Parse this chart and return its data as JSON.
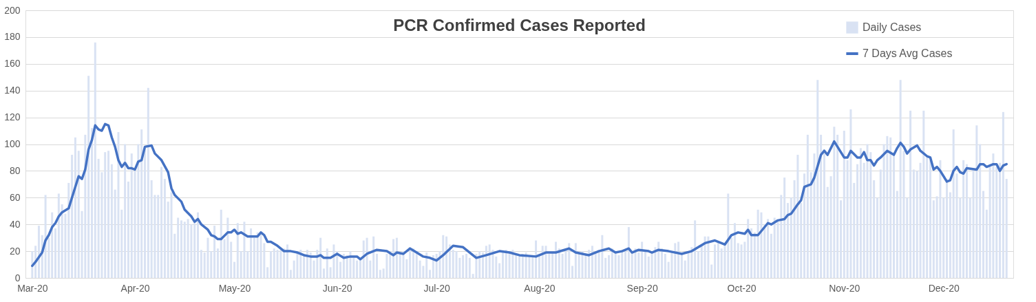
{
  "chart_data": {
    "type": "bar",
    "title": "PCR Confirmed Cases Reported",
    "x": [
      "2020-03-01",
      "2020-03-02",
      "2020-03-03",
      "2020-03-04",
      "2020-03-05",
      "2020-03-06",
      "2020-03-07",
      "2020-03-08",
      "2020-03-09",
      "2020-03-10",
      "2020-03-11",
      "2020-03-12",
      "2020-03-13",
      "2020-03-14",
      "2020-03-15",
      "2020-03-16",
      "2020-03-17",
      "2020-03-18",
      "2020-03-19",
      "2020-03-20",
      "2020-03-21",
      "2020-03-22",
      "2020-03-23",
      "2020-03-24",
      "2020-03-25",
      "2020-03-26",
      "2020-03-27",
      "2020-03-28",
      "2020-03-29",
      "2020-03-30",
      "2020-03-31",
      "2020-04-01",
      "2020-04-02",
      "2020-04-03",
      "2020-04-04",
      "2020-04-05",
      "2020-04-06",
      "2020-04-07",
      "2020-04-08",
      "2020-04-09",
      "2020-04-10",
      "2020-04-11",
      "2020-04-12",
      "2020-04-13",
      "2020-04-14",
      "2020-04-15",
      "2020-04-16",
      "2020-04-17",
      "2020-04-18",
      "2020-04-19",
      "2020-04-20",
      "2020-04-21",
      "2020-04-22",
      "2020-04-23",
      "2020-04-24",
      "2020-04-25",
      "2020-04-26",
      "2020-04-27",
      "2020-04-28",
      "2020-04-29",
      "2020-04-30",
      "2020-05-01",
      "2020-05-02",
      "2020-05-03",
      "2020-05-04",
      "2020-05-05",
      "2020-05-06",
      "2020-05-07",
      "2020-05-08",
      "2020-05-09",
      "2020-05-10",
      "2020-05-11",
      "2020-05-12",
      "2020-05-13",
      "2020-05-14",
      "2020-05-15",
      "2020-05-16",
      "2020-05-17",
      "2020-05-18",
      "2020-05-19",
      "2020-05-20",
      "2020-05-21",
      "2020-05-22",
      "2020-05-23",
      "2020-05-24",
      "2020-05-25",
      "2020-05-26",
      "2020-05-27",
      "2020-05-28",
      "2020-05-29",
      "2020-05-30",
      "2020-05-31",
      "2020-06-01",
      "2020-06-02",
      "2020-06-03",
      "2020-06-04",
      "2020-06-05",
      "2020-06-06",
      "2020-06-07",
      "2020-06-08",
      "2020-06-09",
      "2020-06-10",
      "2020-06-11",
      "2020-06-12",
      "2020-06-13",
      "2020-06-14",
      "2020-06-15",
      "2020-06-16",
      "2020-06-17",
      "2020-06-18",
      "2020-06-19",
      "2020-06-20",
      "2020-06-21",
      "2020-06-22",
      "2020-06-23",
      "2020-06-24",
      "2020-06-25",
      "2020-06-26",
      "2020-06-27",
      "2020-06-28",
      "2020-06-29",
      "2020-06-30",
      "2020-07-01",
      "2020-07-02",
      "2020-07-03",
      "2020-07-04",
      "2020-07-05",
      "2020-07-06",
      "2020-07-07",
      "2020-07-08",
      "2020-07-09",
      "2020-07-10",
      "2020-07-11",
      "2020-07-12",
      "2020-07-13",
      "2020-07-14",
      "2020-07-15",
      "2020-07-16",
      "2020-07-17",
      "2020-07-18",
      "2020-07-19",
      "2020-07-20",
      "2020-07-21",
      "2020-07-22",
      "2020-07-23",
      "2020-07-24",
      "2020-07-25",
      "2020-07-26",
      "2020-07-27",
      "2020-07-28",
      "2020-07-29",
      "2020-07-30",
      "2020-07-31",
      "2020-08-01",
      "2020-08-02",
      "2020-08-03",
      "2020-08-04",
      "2020-08-05",
      "2020-08-06",
      "2020-08-07",
      "2020-08-08",
      "2020-08-09",
      "2020-08-10",
      "2020-08-11",
      "2020-08-12",
      "2020-08-13",
      "2020-08-14",
      "2020-08-15",
      "2020-08-16",
      "2020-08-17",
      "2020-08-18",
      "2020-08-19",
      "2020-08-20",
      "2020-08-21",
      "2020-08-22",
      "2020-08-23",
      "2020-08-24",
      "2020-08-25",
      "2020-08-26",
      "2020-08-27",
      "2020-08-28",
      "2020-08-29",
      "2020-08-30",
      "2020-08-31",
      "2020-09-01",
      "2020-09-02",
      "2020-09-03",
      "2020-09-04",
      "2020-09-05",
      "2020-09-06",
      "2020-09-07",
      "2020-09-08",
      "2020-09-09",
      "2020-09-10",
      "2020-09-11",
      "2020-09-12",
      "2020-09-13",
      "2020-09-14",
      "2020-09-15",
      "2020-09-16",
      "2020-09-17",
      "2020-09-18",
      "2020-09-19",
      "2020-09-20",
      "2020-09-21",
      "2020-09-22",
      "2020-09-23",
      "2020-09-24",
      "2020-09-25",
      "2020-09-26",
      "2020-09-27",
      "2020-09-28",
      "2020-09-29",
      "2020-09-30",
      "2020-10-01",
      "2020-10-02",
      "2020-10-03",
      "2020-10-04",
      "2020-10-05",
      "2020-10-06",
      "2020-10-07",
      "2020-10-08",
      "2020-10-09",
      "2020-10-10",
      "2020-10-11",
      "2020-10-12",
      "2020-10-13",
      "2020-10-14",
      "2020-10-15",
      "2020-10-16",
      "2020-10-17",
      "2020-10-18",
      "2020-10-19",
      "2020-10-20",
      "2020-10-21",
      "2020-10-22",
      "2020-10-23",
      "2020-10-24",
      "2020-10-25",
      "2020-10-26",
      "2020-10-27",
      "2020-10-28",
      "2020-10-29",
      "2020-10-30",
      "2020-10-31",
      "2020-11-01",
      "2020-11-02",
      "2020-11-03",
      "2020-11-04",
      "2020-11-05",
      "2020-11-06",
      "2020-11-07",
      "2020-11-08",
      "2020-11-09",
      "2020-11-10",
      "2020-11-11",
      "2020-11-12",
      "2020-11-13",
      "2020-11-14",
      "2020-11-15",
      "2020-11-16",
      "2020-11-17",
      "2020-11-18",
      "2020-11-19",
      "2020-11-20",
      "2020-11-21",
      "2020-11-22",
      "2020-11-23",
      "2020-11-24",
      "2020-11-25",
      "2020-11-26",
      "2020-11-27",
      "2020-11-28",
      "2020-11-29",
      "2020-11-30",
      "2020-12-01",
      "2020-12-02",
      "2020-12-03",
      "2020-12-04",
      "2020-12-05",
      "2020-12-06",
      "2020-12-07",
      "2020-12-08",
      "2020-12-09",
      "2020-12-10",
      "2020-12-11",
      "2020-12-12",
      "2020-12-13",
      "2020-12-14",
      "2020-12-15",
      "2020-12-16",
      "2020-12-17",
      "2020-12-18",
      "2020-12-19",
      "2020-12-20"
    ],
    "series": [
      {
        "name": "Daily Cases",
        "color": "#d9e2f3",
        "values": [
          20,
          24,
          39,
          32,
          62,
          30,
          49,
          37,
          63,
          55,
          48,
          71,
          92,
          105,
          95,
          50,
          107,
          151,
          112,
          176,
          89,
          79,
          94,
          95,
          85,
          66,
          109,
          51,
          100,
          72,
          93,
          80,
          100,
          111,
          98,
          142,
          73,
          62,
          62,
          83,
          74,
          57,
          64,
          33,
          45,
          43,
          42,
          44,
          40,
          41,
          49,
          21,
          19,
          30,
          20,
          39,
          22,
          51,
          29,
          45,
          27,
          12,
          41,
          20,
          42,
          20,
          37,
          30,
          34,
          33,
          26,
          8,
          20,
          22,
          21,
          21,
          22,
          25,
          6,
          13,
          20,
          21,
          18,
          21,
          19,
          13,
          21,
          30,
          7,
          22,
          8,
          25,
          20,
          12,
          18,
          17,
          20,
          15,
          13,
          14,
          28,
          30,
          13,
          31,
          18,
          6,
          7,
          18,
          20,
          29,
          30,
          19,
          20,
          14,
          23,
          22,
          20,
          13,
          9,
          19,
          6,
          17,
          18,
          20,
          32,
          31,
          25,
          21,
          20,
          15,
          17,
          18,
          15,
          3,
          18,
          20,
          19,
          24,
          25,
          21,
          16,
          11,
          19,
          21,
          20,
          21,
          18,
          17,
          18,
          19,
          16,
          17,
          28,
          17,
          24,
          24,
          18,
          19,
          27,
          22,
          18,
          21,
          26,
          9,
          26,
          18,
          20,
          17,
          21,
          24,
          19,
          21,
          32,
          15,
          17,
          22,
          19,
          17,
          21,
          20,
          38,
          20,
          22,
          19,
          27,
          21,
          16,
          20,
          23,
          27,
          22,
          18,
          12,
          19,
          26,
          27,
          19,
          13,
          20,
          23,
          43,
          20,
          24,
          31,
          31,
          10,
          25,
          27,
          22,
          25,
          63,
          30,
          41,
          26,
          25,
          27,
          44,
          37,
          34,
          51,
          49,
          40,
          44,
          33,
          45,
          42,
          62,
          75,
          56,
          60,
          73,
          92,
          56,
          78,
          107,
          79,
          93,
          148,
          107,
          96,
          68,
          76,
          113,
          107,
          58,
          110,
          88,
          126,
          71,
          85,
          97,
          86,
          100,
          94,
          73,
          60,
          81,
          100,
          106,
          105,
          91,
          65,
          148,
          95,
          60,
          125,
          81,
          80,
          86,
          125,
          90,
          88,
          58,
          61,
          88,
          60,
          72,
          64,
          111,
          78,
          60,
          88,
          85,
          60,
          81,
          114,
          100,
          65,
          51,
          85,
          93,
          83,
          86,
          124,
          74
        ]
      },
      {
        "name": "7 Days Avg Cases",
        "type": "line",
        "color": "#4472c4",
        "x": [
          "2020-03-01",
          "2020-03-02",
          "2020-03-04",
          "2020-03-05",
          "2020-03-06",
          "2020-03-07",
          "2020-03-08",
          "2020-03-09",
          "2020-03-10",
          "2020-03-12",
          "2020-03-13",
          "2020-03-15",
          "2020-03-16",
          "2020-03-17",
          "2020-03-18",
          "2020-03-19",
          "2020-03-20",
          "2020-03-21",
          "2020-03-22",
          "2020-03-23",
          "2020-03-24",
          "2020-03-25",
          "2020-03-26",
          "2020-03-27",
          "2020-03-28",
          "2020-03-29",
          "2020-03-30",
          "2020-03-31",
          "2020-04-01",
          "2020-04-02",
          "2020-04-03",
          "2020-04-04",
          "2020-04-06",
          "2020-04-07",
          "2020-04-09",
          "2020-04-11",
          "2020-04-12",
          "2020-04-13",
          "2020-04-15",
          "2020-04-16",
          "2020-04-18",
          "2020-04-19",
          "2020-04-20",
          "2020-04-21",
          "2020-04-23",
          "2020-04-24",
          "2020-04-25",
          "2020-04-26",
          "2020-04-27",
          "2020-04-29",
          "2020-04-30",
          "2020-05-01",
          "2020-05-02",
          "2020-05-03",
          "2020-05-05",
          "2020-05-08",
          "2020-05-09",
          "2020-05-10",
          "2020-05-11",
          "2020-05-12",
          "2020-05-14",
          "2020-05-16",
          "2020-05-18",
          "2020-05-20",
          "2020-05-22",
          "2020-05-24",
          "2020-05-26",
          "2020-05-27",
          "2020-05-28",
          "2020-05-30",
          "2020-06-01",
          "2020-06-03",
          "2020-06-05",
          "2020-06-07",
          "2020-06-08",
          "2020-06-10",
          "2020-06-13",
          "2020-06-16",
          "2020-06-18",
          "2020-06-19",
          "2020-06-21",
          "2020-06-23",
          "2020-06-25",
          "2020-06-27",
          "2020-06-29",
          "2020-07-01",
          "2020-07-03",
          "2020-07-06",
          "2020-07-09",
          "2020-07-13",
          "2020-07-16",
          "2020-07-20",
          "2020-07-23",
          "2020-07-26",
          "2020-07-31",
          "2020-08-03",
          "2020-08-06",
          "2020-08-10",
          "2020-08-12",
          "2020-08-16",
          "2020-08-19",
          "2020-08-22",
          "2020-08-24",
          "2020-08-26",
          "2020-08-28",
          "2020-08-29",
          "2020-08-31",
          "2020-09-03",
          "2020-09-04",
          "2020-09-06",
          "2020-09-09",
          "2020-09-13",
          "2020-09-16",
          "2020-09-18",
          "2020-09-20",
          "2020-09-23",
          "2020-09-26",
          "2020-09-28",
          "2020-09-30",
          "2020-10-02",
          "2020-10-03",
          "2020-10-04",
          "2020-10-06",
          "2020-10-09",
          "2020-10-10",
          "2020-10-12",
          "2020-10-14",
          "2020-10-15",
          "2020-10-16",
          "2020-10-18",
          "2020-10-19",
          "2020-10-20",
          "2020-10-22",
          "2020-10-23",
          "2020-10-25",
          "2020-10-26",
          "2020-10-27",
          "2020-10-29",
          "2020-10-30",
          "2020-11-01",
          "2020-11-02",
          "2020-11-03",
          "2020-11-05",
          "2020-11-06",
          "2020-11-07",
          "2020-11-08",
          "2020-11-09",
          "2020-11-10",
          "2020-11-11",
          "2020-11-12",
          "2020-11-14",
          "2020-11-16",
          "2020-11-17",
          "2020-11-18",
          "2020-11-19",
          "2020-11-20",
          "2020-11-21",
          "2020-11-23",
          "2020-11-24",
          "2020-11-26",
          "2020-11-27",
          "2020-11-28",
          "2020-11-29",
          "2020-11-30",
          "2020-12-02",
          "2020-12-03",
          "2020-12-04",
          "2020-12-05",
          "2020-12-06",
          "2020-12-07",
          "2020-12-08",
          "2020-12-11",
          "2020-12-12",
          "2020-12-13",
          "2020-12-14",
          "2020-12-16",
          "2020-12-17",
          "2020-12-18",
          "2020-12-19",
          "2020-12-20"
        ],
        "values": [
          9,
          12,
          19,
          28,
          32,
          38,
          41,
          46,
          49,
          52,
          60,
          76,
          74,
          81,
          96,
          103,
          114,
          111,
          110,
          115,
          114,
          105,
          98,
          88,
          83,
          86,
          82,
          82,
          81,
          87,
          88,
          98,
          99,
          93,
          88,
          79,
          67,
          62,
          57,
          51,
          46,
          42,
          44,
          40,
          36,
          32,
          31,
          29,
          29,
          34,
          34,
          36,
          33,
          34,
          31,
          31,
          34,
          32,
          27,
          27,
          24,
          20,
          20,
          19,
          17,
          16,
          16,
          17,
          15,
          15,
          18,
          15,
          16,
          16,
          14,
          18,
          21,
          20,
          17,
          19,
          18,
          22,
          19,
          16,
          15,
          13,
          17,
          24,
          23,
          15,
          17,
          20,
          19,
          17,
          16,
          19,
          19,
          22,
          19,
          17,
          20,
          22,
          19,
          20,
          22,
          19,
          21,
          20,
          19,
          21,
          20,
          18,
          20,
          23,
          26,
          28,
          25,
          32,
          34,
          33,
          36,
          32,
          32,
          41,
          40,
          43,
          44,
          47,
          48,
          55,
          58,
          68,
          70,
          75,
          92,
          95,
          92,
          102,
          98,
          90,
          90,
          95,
          90,
          90,
          94,
          88,
          88,
          84,
          88,
          90,
          95,
          92,
          97,
          101,
          98,
          93,
          96,
          99,
          95,
          91,
          90,
          81,
          83,
          80,
          72,
          73,
          80,
          83,
          79,
          78,
          82,
          81,
          85,
          85,
          83,
          85,
          85,
          80,
          84,
          85
        ]
      }
    ],
    "xlim": [
      "2020-02-29",
      "2020-12-21"
    ],
    "xticks": [
      {
        "value": "2020-03-01",
        "label": "Mar-20"
      },
      {
        "value": "2020-04-01",
        "label": "Apr-20"
      },
      {
        "value": "2020-05-01",
        "label": "May-20"
      },
      {
        "value": "2020-06-01",
        "label": "Jun-20"
      },
      {
        "value": "2020-07-01",
        "label": "Jul-20"
      },
      {
        "value": "2020-08-01",
        "label": "Aug-20"
      },
      {
        "value": "2020-09-01",
        "label": "Sep-20"
      },
      {
        "value": "2020-10-01",
        "label": "Oct-20"
      },
      {
        "value": "2020-11-01",
        "label": "Nov-20"
      },
      {
        "value": "2020-12-01",
        "label": "Dec-20"
      }
    ],
    "ylim": [
      0,
      200
    ],
    "yticks": [
      0,
      20,
      40,
      60,
      80,
      100,
      120,
      140,
      160,
      180,
      200
    ],
    "grid": "y",
    "legend": "top right",
    "line_style": "solid"
  }
}
